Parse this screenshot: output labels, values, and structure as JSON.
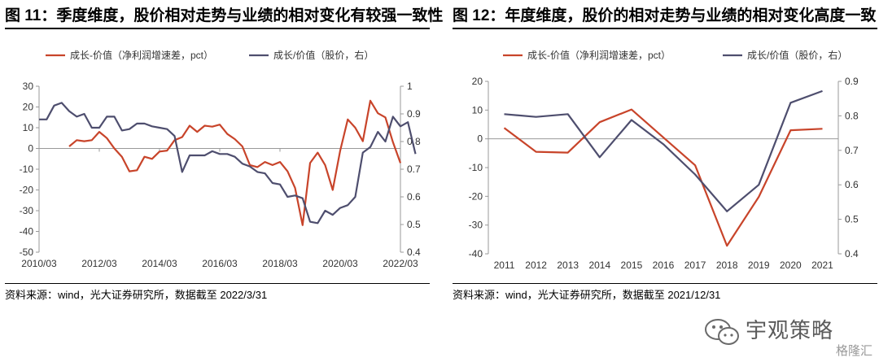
{
  "left": {
    "title": "图 11：季度维度，股价相对走势与业绩的相对变化有较强一致性",
    "source": "资料来源：wind，光大证券研究所，数据截至 2022/3/31"
  },
  "right": {
    "title": "图 12：年度维度，股价的相对走势与业绩的相对变化高度一致",
    "source": "资料来源：wind，光大证券研究所，数据截至 2021/12/31"
  },
  "watermark": {
    "text": "宇观策略",
    "sub": "格隆汇"
  },
  "colors": {
    "growth_value_spread": "#c8442a",
    "growth_value_price": "#4e4e6e"
  },
  "chart_data": [
    {
      "type": "line",
      "title": "",
      "xlabel": "",
      "ylabel": "",
      "y2label": "",
      "ylim": [
        -50,
        30
      ],
      "y2lim": [
        0.4,
        1.0
      ],
      "yticks": [
        30,
        20,
        10,
        0,
        -10,
        -20,
        -30,
        -40,
        -50
      ],
      "y2ticks": [
        "1",
        "0.9",
        "0.8",
        "0.7",
        "0.6",
        "0.5",
        "0.4"
      ],
      "x_ticks": [
        "2010/03",
        "2012/03",
        "2014/03",
        "2016/03",
        "2018/03",
        "2020/03",
        "2022/03"
      ],
      "x_tick_quarters": [
        0,
        8,
        16,
        24,
        32,
        40,
        48
      ],
      "x_quarters_total": 48,
      "legend_position": "top",
      "grid": false,
      "series": [
        {
          "name": "成长-价值（净利润增速差，pct）",
          "axis": "left",
          "x_start_quarter": 4,
          "values": [
            1,
            4,
            3.5,
            4,
            8,
            5,
            0,
            -4,
            -11,
            -10.5,
            -4,
            -5,
            -1.5,
            -1,
            4,
            5.5,
            11,
            8,
            11,
            10.5,
            11.5,
            7,
            4.5,
            1,
            -8,
            -9,
            -6.5,
            -8,
            -6.5,
            -11,
            -19,
            -37,
            -7,
            -2,
            -8,
            -20,
            -1,
            14,
            10,
            3.5,
            23,
            17,
            15,
            3,
            -7
          ]
        },
        {
          "name": "成长/价值（股价，右）",
          "axis": "right",
          "x_start_quarter": 0,
          "values": [
            0.88,
            0.88,
            0.93,
            0.94,
            0.91,
            0.89,
            0.9,
            0.85,
            0.85,
            0.89,
            0.89,
            0.84,
            0.845,
            0.865,
            0.865,
            0.855,
            0.85,
            0.845,
            0.82,
            0.69,
            0.75,
            0.75,
            0.75,
            0.765,
            0.755,
            0.755,
            0.745,
            0.72,
            0.71,
            0.69,
            0.685,
            0.65,
            0.645,
            0.6,
            0.605,
            0.595,
            0.51,
            0.505,
            0.55,
            0.535,
            0.56,
            0.57,
            0.6,
            0.76,
            0.78,
            0.835,
            0.8,
            0.89,
            0.855,
            0.87,
            0.755
          ]
        }
      ]
    },
    {
      "type": "line",
      "title": "",
      "xlabel": "",
      "ylabel": "",
      "y2label": "",
      "ylim": [
        -40,
        20
      ],
      "y2lim": [
        0.4,
        0.9
      ],
      "yticks": [
        20,
        10,
        0,
        -10,
        -20,
        -30,
        -40
      ],
      "y2ticks": [
        "0.9",
        "0.8",
        "0.7",
        "0.6",
        "0.5",
        "0.4"
      ],
      "categories": [
        "2011",
        "2012",
        "2013",
        "2014",
        "2015",
        "2016",
        "2017",
        "2018",
        "2019",
        "2020",
        "2021"
      ],
      "legend_position": "top",
      "grid": false,
      "series": [
        {
          "name": "成长-价值（净利润增速差，pct）",
          "axis": "left",
          "values": [
            3.8,
            -4.5,
            -4.8,
            5.8,
            10.2,
            0.5,
            -9.2,
            -37.2,
            -20.2,
            3,
            3.5
          ]
        },
        {
          "name": "成长/价值（股价，右）",
          "axis": "right",
          "values": [
            0.805,
            0.797,
            0.805,
            0.68,
            0.788,
            0.718,
            0.63,
            0.523,
            0.6,
            0.838,
            0.872
          ]
        }
      ]
    }
  ]
}
